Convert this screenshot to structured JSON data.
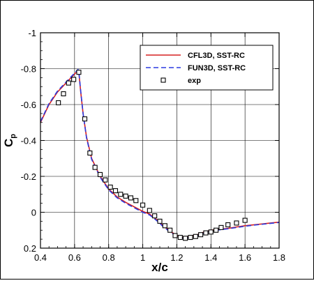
{
  "chart_data": {
    "type": "line",
    "title": "",
    "xlabel": "x/c",
    "ylabel": {
      "main": "C",
      "sub": "p"
    },
    "xlim": [
      0.4,
      1.8
    ],
    "ylim": [
      0.2,
      -1.0
    ],
    "y_inverted": true,
    "x_ticks": [
      0.4,
      0.6,
      0.8,
      1.0,
      1.2,
      1.4,
      1.6,
      1.8
    ],
    "x_tick_labels": [
      "0.4",
      "0.6",
      "0.8",
      "1",
      "1.2",
      "1.4",
      "1.6",
      "1.8"
    ],
    "y_ticks": [
      -1.0,
      -0.8,
      -0.6,
      -0.4,
      -0.2,
      0.0,
      0.2
    ],
    "y_tick_labels": [
      "-1",
      "-0.8",
      "-0.6",
      "-0.4",
      "-0.2",
      "0",
      "0.2"
    ],
    "grid": true,
    "legend_position": "top-right",
    "series": [
      {
        "name": "CFL3D, SST-RC",
        "kind": "line",
        "color": "#d62020",
        "dash": "solid",
        "x": [
          0.4,
          0.45,
          0.5,
          0.55,
          0.6,
          0.62,
          0.625,
          0.635,
          0.65,
          0.67,
          0.7,
          0.75,
          0.8,
          0.85,
          0.9,
          0.95,
          1.0,
          1.04,
          1.08,
          1.12,
          1.16,
          1.2,
          1.24,
          1.28,
          1.32,
          1.36,
          1.4,
          1.45,
          1.5,
          1.55,
          1.6,
          1.65,
          1.7,
          1.75,
          1.8
        ],
        "y": [
          -0.5,
          -0.6,
          -0.67,
          -0.72,
          -0.77,
          -0.79,
          -0.78,
          -0.68,
          -0.55,
          -0.42,
          -0.3,
          -0.2,
          -0.13,
          -0.085,
          -0.055,
          -0.03,
          -0.005,
          0.01,
          0.04,
          0.075,
          0.105,
          0.13,
          0.14,
          0.135,
          0.125,
          0.11,
          0.1,
          0.095,
          0.09,
          0.082,
          0.075,
          0.07,
          0.065,
          0.06,
          0.055
        ]
      },
      {
        "name": "FUN3D, SST-RC",
        "kind": "line",
        "color": "#2a3ae0",
        "dash": "dashed",
        "x": [
          0.4,
          0.45,
          0.5,
          0.55,
          0.6,
          0.62,
          0.625,
          0.635,
          0.65,
          0.67,
          0.7,
          0.75,
          0.8,
          0.85,
          0.9,
          0.95,
          1.0,
          1.04,
          1.08,
          1.12,
          1.16,
          1.2,
          1.24,
          1.28,
          1.32,
          1.36,
          1.4,
          1.45,
          1.5,
          1.55,
          1.6,
          1.65,
          1.7,
          1.75,
          1.8
        ],
        "y": [
          -0.505,
          -0.605,
          -0.675,
          -0.725,
          -0.775,
          -0.795,
          -0.785,
          -0.685,
          -0.55,
          -0.415,
          -0.295,
          -0.195,
          -0.125,
          -0.08,
          -0.05,
          -0.025,
          0.0,
          0.015,
          0.045,
          0.08,
          0.11,
          0.135,
          0.145,
          0.14,
          0.13,
          0.115,
          0.105,
          0.098,
          0.092,
          0.085,
          0.078,
          0.072,
          0.067,
          0.062,
          0.057
        ]
      },
      {
        "name": "exp",
        "kind": "marker",
        "marker": "square",
        "color": "#000000",
        "x": [
          0.505,
          0.535,
          0.565,
          0.595,
          0.625,
          0.66,
          0.69,
          0.72,
          0.75,
          0.78,
          0.81,
          0.84,
          0.87,
          0.9,
          0.93,
          0.96,
          1.0,
          1.04,
          1.07,
          1.1,
          1.13,
          1.16,
          1.19,
          1.22,
          1.25,
          1.28,
          1.31,
          1.34,
          1.37,
          1.4,
          1.43,
          1.46,
          1.5,
          1.55,
          1.6
        ],
        "y": [
          -0.61,
          -0.66,
          -0.72,
          -0.74,
          -0.78,
          -0.52,
          -0.33,
          -0.25,
          -0.21,
          -0.18,
          -0.14,
          -0.12,
          -0.1,
          -0.09,
          -0.08,
          -0.065,
          -0.04,
          -0.01,
          0.02,
          0.05,
          0.075,
          0.1,
          0.13,
          0.14,
          0.145,
          0.14,
          0.135,
          0.125,
          0.115,
          0.11,
          0.1,
          0.085,
          0.07,
          0.06,
          0.045
        ]
      }
    ]
  }
}
